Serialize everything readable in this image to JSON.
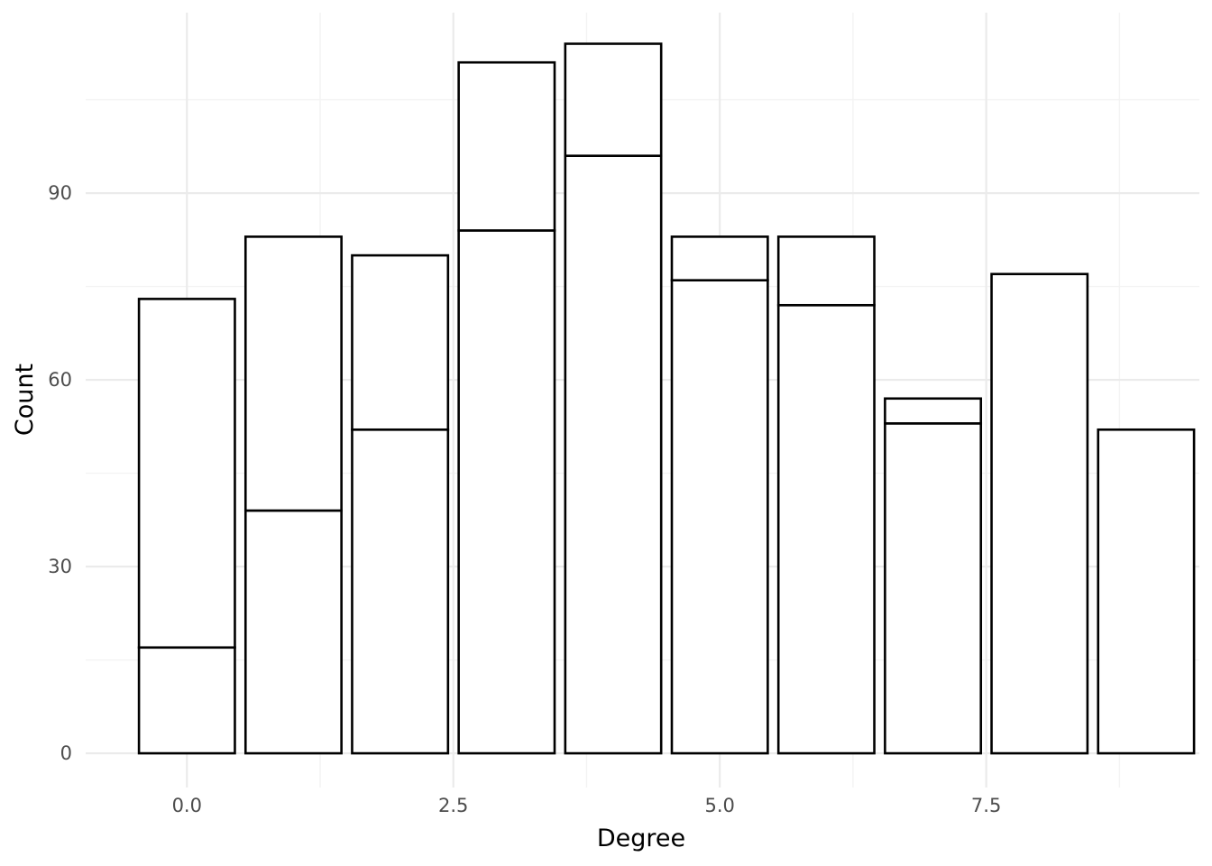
{
  "chart_data": {
    "type": "bar",
    "subtype": "stacked-outline",
    "title": "",
    "xlabel": "Degree",
    "ylabel": "Count",
    "x_ticks": [
      "0.0",
      "2.5",
      "5.0",
      "7.5"
    ],
    "y_ticks": [
      "0",
      "30",
      "60",
      "90"
    ],
    "xlim": [
      -0.95,
      9.5
    ],
    "ylim": [
      -5.5,
      119
    ],
    "grid": true,
    "legend": "none",
    "categories": [
      0,
      1,
      2,
      3,
      4,
      5,
      6,
      7,
      8,
      9
    ],
    "series": [
      {
        "values": [
          17,
          39,
          52,
          84,
          96,
          76,
          72,
          53,
          77,
          52
        ]
      },
      {
        "values": [
          56,
          44,
          28,
          27,
          18,
          7,
          11,
          4,
          0,
          0
        ]
      }
    ],
    "totals": [
      73,
      83,
      80,
      111,
      114,
      83,
      83,
      57,
      77,
      52
    ],
    "colors": {
      "fill": "#ffffff",
      "outline": "#000000",
      "grid": "#ebebeb",
      "tick_text": "#4d4d4d"
    }
  }
}
